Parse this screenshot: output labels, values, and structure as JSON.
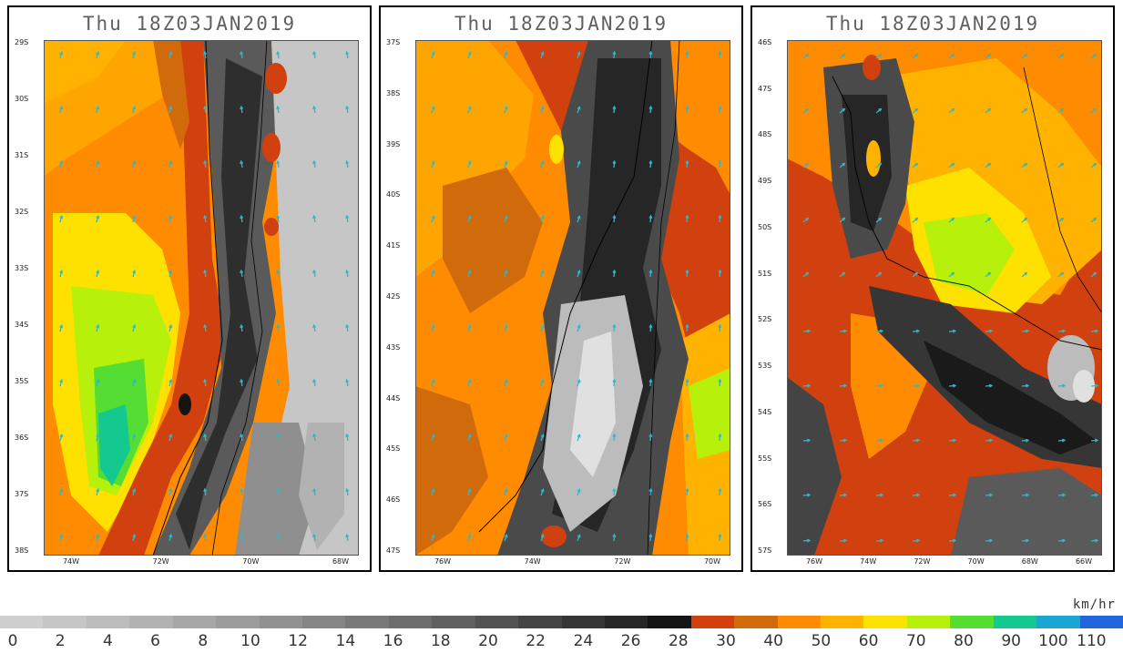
{
  "panels": [
    {
      "title": "Thu  18Z03JAN2019",
      "lat_labels": [
        "29S",
        "30S",
        "31S",
        "32S",
        "33S",
        "34S",
        "35S",
        "36S",
        "37S",
        "38S"
      ],
      "lon_labels": [
        "74W",
        "72W",
        "70W",
        "68W"
      ],
      "scene": "west"
    },
    {
      "title": "Thu  18Z03JAN2019",
      "lat_labels": [
        "37S",
        "38S",
        "39S",
        "40S",
        "41S",
        "42S",
        "43S",
        "44S",
        "45S",
        "46S",
        "47S"
      ],
      "lon_labels": [
        "76W",
        "74W",
        "72W",
        "70W"
      ],
      "scene": "central"
    },
    {
      "title": "Thu  18Z03JAN2019",
      "lat_labels": [
        "46S",
        "47S",
        "48S",
        "49S",
        "50S",
        "51S",
        "52S",
        "53S",
        "54S",
        "55S",
        "56S",
        "57S"
      ],
      "lon_labels": [
        "76W",
        "74W",
        "72W",
        "70W",
        "68W",
        "66W"
      ],
      "scene": "south"
    }
  ],
  "colorbar": {
    "units": "km/hr",
    "labels": [
      "0",
      "2",
      "4",
      "6",
      "8",
      "10",
      "12",
      "14",
      "16",
      "18",
      "20",
      "22",
      "24",
      "26",
      "28",
      "30",
      "40",
      "50",
      "60",
      "70",
      "80",
      "90",
      "100",
      "110"
    ],
    "colors": [
      "#cfcfcf",
      "#c6c6c6",
      "#bcbcbc",
      "#b2b2b2",
      "#a7a7a7",
      "#9c9c9c",
      "#919191",
      "#858585",
      "#797979",
      "#6d6d6d",
      "#606060",
      "#525252",
      "#444444",
      "#363636",
      "#262626",
      "#141414",
      "#d1400f",
      "#d16a0a",
      "#ff8c00",
      "#ffb300",
      "#ffe100",
      "#b7f00a",
      "#55dd33",
      "#14c98f",
      "#1aa6d1",
      "#2266dd"
    ]
  }
}
